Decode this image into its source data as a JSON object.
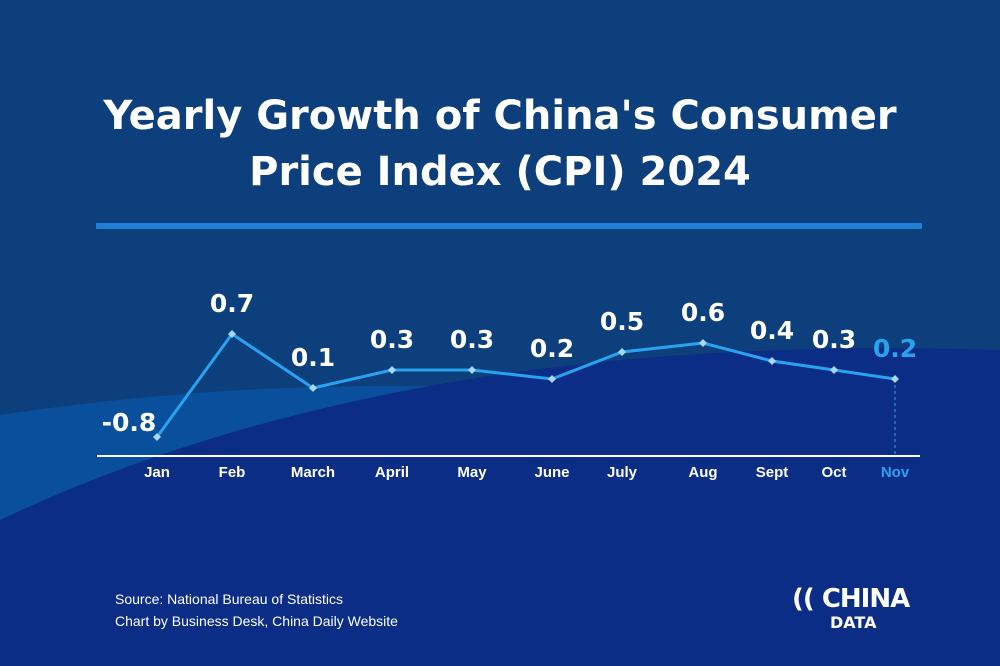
{
  "title_line1": "Yearly Growth of China's Consumer",
  "title_line2": "Price Index (CPI) 2024",
  "source": "Source: National Bureau of Statistics",
  "credit": "Chart by Business Desk, China Daily Website",
  "logo": {
    "top": "CHINA",
    "bottom": "DATA"
  },
  "colors": {
    "background": "#0c3f7c",
    "line": "#29a3f0",
    "highlight": "#29a3f0",
    "text": "#ffffff"
  },
  "chart_data": {
    "type": "line",
    "categories": [
      "Jan",
      "Feb",
      "March",
      "April",
      "May",
      "June",
      "July",
      "Aug",
      "Sept",
      "Oct",
      "Nov"
    ],
    "values": [
      -0.8,
      0.7,
      0.1,
      0.3,
      0.3,
      0.2,
      0.5,
      0.6,
      0.4,
      0.3,
      0.2
    ],
    "highlighted": "Nov",
    "grid": false
  }
}
